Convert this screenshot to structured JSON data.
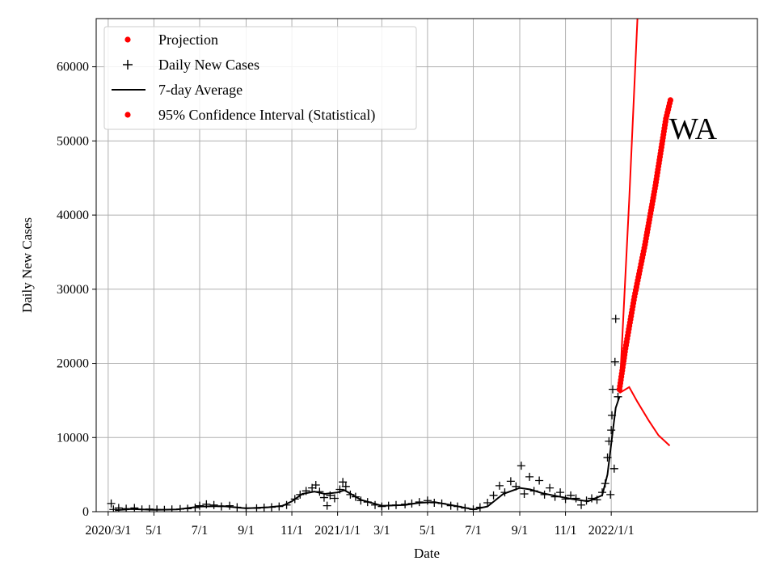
{
  "chart_data": {
    "type": "line",
    "state_label": "WA",
    "xlabel": "Date",
    "ylabel": "Daily New Cases",
    "xlim": [
      "2020-02-14",
      "2022-07-15"
    ],
    "ylim": [
      0,
      66500
    ],
    "x_ticks": [
      {
        "date": "2020-03-01",
        "label": "2020/3/1"
      },
      {
        "date": "2020-05-01",
        "label": "5/1"
      },
      {
        "date": "2020-07-01",
        "label": "7/1"
      },
      {
        "date": "2020-09-01",
        "label": "9/1"
      },
      {
        "date": "2020-11-01",
        "label": "11/1"
      },
      {
        "date": "2021-01-01",
        "label": "2021/1/1"
      },
      {
        "date": "2021-03-01",
        "label": "3/1"
      },
      {
        "date": "2021-05-01",
        "label": "5/1"
      },
      {
        "date": "2021-07-01",
        "label": "7/1"
      },
      {
        "date": "2021-09-01",
        "label": "9/1"
      },
      {
        "date": "2021-11-01",
        "label": "11/1"
      },
      {
        "date": "2022-01-01",
        "label": "2022/1/1"
      }
    ],
    "y_ticks": [
      0,
      10000,
      20000,
      30000,
      40000,
      50000,
      60000
    ],
    "grid": true,
    "legend_position": "top-left",
    "legend": [
      {
        "label": "Projection",
        "marker": "dot",
        "color": "#ff0000"
      },
      {
        "label": "Daily New Cases",
        "marker": "plus",
        "color": "#000000"
      },
      {
        "label": "7-day Average",
        "marker": "line",
        "color": "#000000"
      },
      {
        "label": "95% Confidence Interval (Statistical)",
        "marker": "dot",
        "color": "#ff0000"
      }
    ],
    "colors": {
      "cases": "#000000",
      "average": "#000000",
      "projection": "#ff0000",
      "grid": "#b0b0b0"
    },
    "seven_day_average": [
      {
        "x": "2020-03-10",
        "y": 200
      },
      {
        "x": "2020-04-01",
        "y": 350
      },
      {
        "x": "2020-05-01",
        "y": 250
      },
      {
        "x": "2020-06-01",
        "y": 300
      },
      {
        "x": "2020-07-01",
        "y": 700
      },
      {
        "x": "2020-08-01",
        "y": 750
      },
      {
        "x": "2020-09-01",
        "y": 450
      },
      {
        "x": "2020-10-01",
        "y": 600
      },
      {
        "x": "2020-10-20",
        "y": 800
      },
      {
        "x": "2020-11-01",
        "y": 1400
      },
      {
        "x": "2020-11-15",
        "y": 2400
      },
      {
        "x": "2020-12-01",
        "y": 2700
      },
      {
        "x": "2020-12-15",
        "y": 2400
      },
      {
        "x": "2021-01-01",
        "y": 2600
      },
      {
        "x": "2021-01-10",
        "y": 2900
      },
      {
        "x": "2021-02-01",
        "y": 1600
      },
      {
        "x": "2021-03-01",
        "y": 800
      },
      {
        "x": "2021-04-01",
        "y": 900
      },
      {
        "x": "2021-04-20",
        "y": 1200
      },
      {
        "x": "2021-05-10",
        "y": 1300
      },
      {
        "x": "2021-06-01",
        "y": 900
      },
      {
        "x": "2021-07-01",
        "y": 300
      },
      {
        "x": "2021-07-20",
        "y": 700
      },
      {
        "x": "2021-08-10",
        "y": 2400
      },
      {
        "x": "2021-09-01",
        "y": 3200
      },
      {
        "x": "2021-09-15",
        "y": 3000
      },
      {
        "x": "2021-10-01",
        "y": 2500
      },
      {
        "x": "2021-10-20",
        "y": 2100
      },
      {
        "x": "2021-11-10",
        "y": 1700
      },
      {
        "x": "2021-12-01",
        "y": 1400
      },
      {
        "x": "2021-12-20",
        "y": 2200
      },
      {
        "x": "2021-12-27",
        "y": 5000
      },
      {
        "x": "2022-01-02",
        "y": 10000
      },
      {
        "x": "2022-01-07",
        "y": 14000
      },
      {
        "x": "2022-01-12",
        "y": 15500
      }
    ],
    "daily_new_cases": [
      {
        "x": "2020-03-05",
        "y": 1100
      },
      {
        "x": "2020-03-08",
        "y": 300
      },
      {
        "x": "2020-03-15",
        "y": 500
      },
      {
        "x": "2020-03-25",
        "y": 400
      },
      {
        "x": "2020-04-05",
        "y": 500
      },
      {
        "x": "2020-04-15",
        "y": 300
      },
      {
        "x": "2020-04-25",
        "y": 350
      },
      {
        "x": "2020-05-05",
        "y": 300
      },
      {
        "x": "2020-05-15",
        "y": 250
      },
      {
        "x": "2020-05-25",
        "y": 300
      },
      {
        "x": "2020-06-05",
        "y": 350
      },
      {
        "x": "2020-06-15",
        "y": 400
      },
      {
        "x": "2020-06-25",
        "y": 550
      },
      {
        "x": "2020-07-01",
        "y": 800
      },
      {
        "x": "2020-07-10",
        "y": 1000
      },
      {
        "x": "2020-07-20",
        "y": 900
      },
      {
        "x": "2020-07-30",
        "y": 700
      },
      {
        "x": "2020-08-10",
        "y": 800
      },
      {
        "x": "2020-08-20",
        "y": 600
      },
      {
        "x": "2020-09-01",
        "y": 500
      },
      {
        "x": "2020-09-15",
        "y": 450
      },
      {
        "x": "2020-09-25",
        "y": 550
      },
      {
        "x": "2020-10-05",
        "y": 600
      },
      {
        "x": "2020-10-15",
        "y": 700
      },
      {
        "x": "2020-10-25",
        "y": 900
      },
      {
        "x": "2020-11-05",
        "y": 1700
      },
      {
        "x": "2020-11-12",
        "y": 2300
      },
      {
        "x": "2020-11-20",
        "y": 2800
      },
      {
        "x": "2020-11-28",
        "y": 3200
      },
      {
        "x": "2020-12-03",
        "y": 3600
      },
      {
        "x": "2020-12-08",
        "y": 2700
      },
      {
        "x": "2020-12-14",
        "y": 1900
      },
      {
        "x": "2020-12-18",
        "y": 800
      },
      {
        "x": "2020-12-22",
        "y": 2200
      },
      {
        "x": "2020-12-28",
        "y": 1800
      },
      {
        "x": "2021-01-04",
        "y": 3000
      },
      {
        "x": "2021-01-08",
        "y": 4000
      },
      {
        "x": "2021-01-12",
        "y": 3400
      },
      {
        "x": "2021-01-18",
        "y": 2300
      },
      {
        "x": "2021-01-25",
        "y": 2000
      },
      {
        "x": "2021-02-01",
        "y": 1500
      },
      {
        "x": "2021-02-10",
        "y": 1300
      },
      {
        "x": "2021-02-20",
        "y": 900
      },
      {
        "x": "2021-03-01",
        "y": 700
      },
      {
        "x": "2021-03-10",
        "y": 800
      },
      {
        "x": "2021-03-20",
        "y": 900
      },
      {
        "x": "2021-04-01",
        "y": 1000
      },
      {
        "x": "2021-04-10",
        "y": 1100
      },
      {
        "x": "2021-04-20",
        "y": 1300
      },
      {
        "x": "2021-05-01",
        "y": 1500
      },
      {
        "x": "2021-05-10",
        "y": 1200
      },
      {
        "x": "2021-05-20",
        "y": 1100
      },
      {
        "x": "2021-06-01",
        "y": 800
      },
      {
        "x": "2021-06-10",
        "y": 700
      },
      {
        "x": "2021-06-20",
        "y": 500
      },
      {
        "x": "2021-07-01",
        "y": 300
      },
      {
        "x": "2021-07-10",
        "y": 600
      },
      {
        "x": "2021-07-20",
        "y": 1200
      },
      {
        "x": "2021-07-28",
        "y": 2200
      },
      {
        "x": "2021-08-05",
        "y": 3500
      },
      {
        "x": "2021-08-12",
        "y": 2600
      },
      {
        "x": "2021-08-20",
        "y": 4100
      },
      {
        "x": "2021-08-27",
        "y": 3400
      },
      {
        "x": "2021-09-03",
        "y": 6200
      },
      {
        "x": "2021-09-07",
        "y": 2400
      },
      {
        "x": "2021-09-14",
        "y": 4700
      },
      {
        "x": "2021-09-20",
        "y": 2800
      },
      {
        "x": "2021-09-27",
        "y": 4200
      },
      {
        "x": "2021-10-04",
        "y": 2300
      },
      {
        "x": "2021-10-11",
        "y": 3200
      },
      {
        "x": "2021-10-18",
        "y": 2000
      },
      {
        "x": "2021-10-25",
        "y": 2600
      },
      {
        "x": "2021-11-01",
        "y": 1700
      },
      {
        "x": "2021-11-08",
        "y": 2200
      },
      {
        "x": "2021-11-15",
        "y": 1800
      },
      {
        "x": "2021-11-22",
        "y": 900
      },
      {
        "x": "2021-11-29",
        "y": 1500
      },
      {
        "x": "2021-12-06",
        "y": 1800
      },
      {
        "x": "2021-12-13",
        "y": 1600
      },
      {
        "x": "2021-12-20",
        "y": 2600
      },
      {
        "x": "2021-12-24",
        "y": 3800
      },
      {
        "x": "2021-12-27",
        "y": 7300
      },
      {
        "x": "2021-12-29",
        "y": 9500
      },
      {
        "x": "2021-12-31",
        "y": 2300
      },
      {
        "x": "2022-01-01",
        "y": 11000
      },
      {
        "x": "2022-01-02",
        "y": 13000
      },
      {
        "x": "2022-01-03",
        "y": 16500
      },
      {
        "x": "2022-01-05",
        "y": 5800
      },
      {
        "x": "2022-01-06",
        "y": 20200
      },
      {
        "x": "2022-01-07",
        "y": 26000
      },
      {
        "x": "2022-01-10",
        "y": 15500
      }
    ],
    "projection": [
      {
        "x": "2022-01-12",
        "y": 16000
      },
      {
        "x": "2022-01-25",
        "y": 42000
      },
      {
        "x": "2022-02-05",
        "y": 66500
      }
    ],
    "confidence_interval_upper": [
      {
        "x": "2022-01-12",
        "y": 16500
      },
      {
        "x": "2022-01-20",
        "y": 22000
      },
      {
        "x": "2022-02-01",
        "y": 29000
      },
      {
        "x": "2022-02-15",
        "y": 36000
      },
      {
        "x": "2022-03-01",
        "y": 44000
      },
      {
        "x": "2022-03-15",
        "y": 53000
      },
      {
        "x": "2022-03-21",
        "y": 55500
      }
    ],
    "confidence_interval_lower": [
      {
        "x": "2022-01-12",
        "y": 16000
      },
      {
        "x": "2022-01-25",
        "y": 16800
      },
      {
        "x": "2022-02-05",
        "y": 14800
      },
      {
        "x": "2022-02-20",
        "y": 12300
      },
      {
        "x": "2022-03-05",
        "y": 10300
      },
      {
        "x": "2022-03-20",
        "y": 8900
      }
    ]
  }
}
